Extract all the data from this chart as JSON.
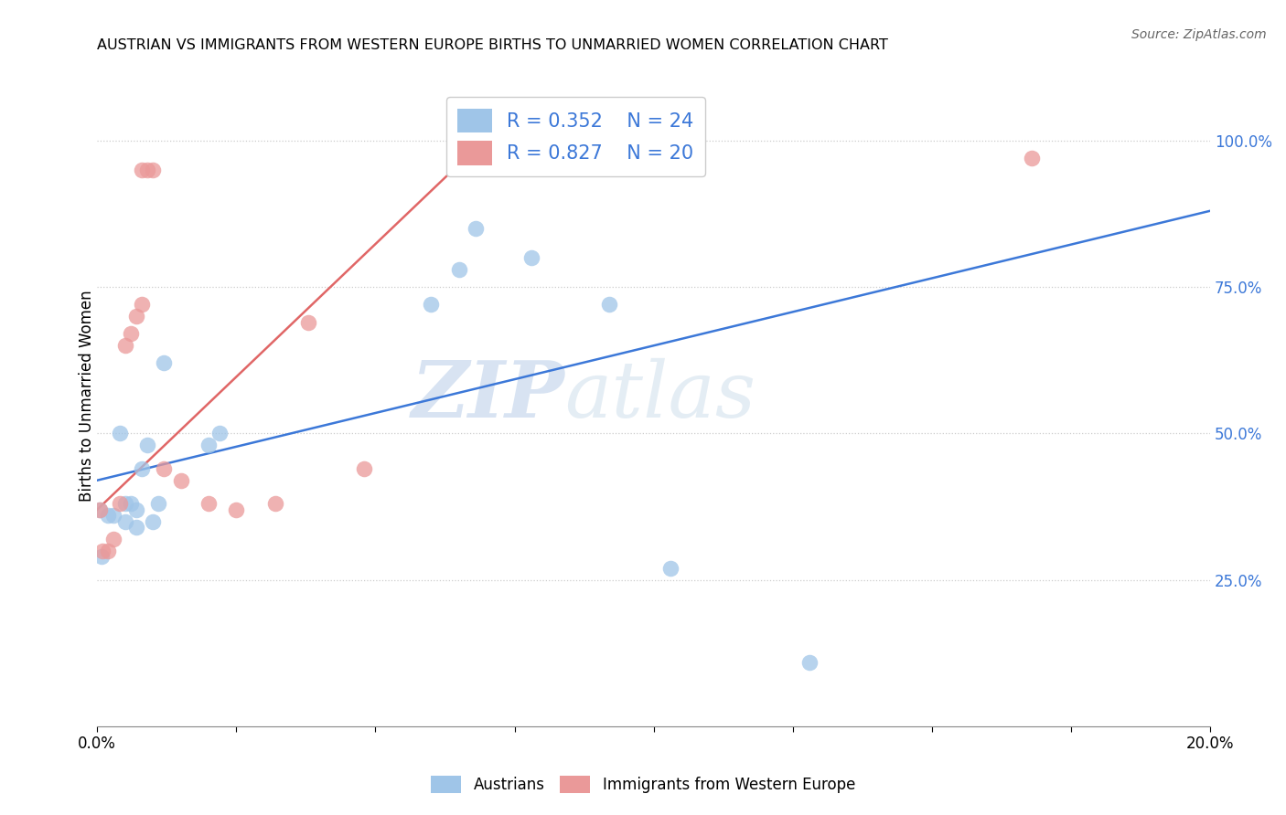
{
  "title": "AUSTRIAN VS IMMIGRANTS FROM WESTERN EUROPE BIRTHS TO UNMARRIED WOMEN CORRELATION CHART",
  "source": "Source: ZipAtlas.com",
  "ylabel": "Births to Unmarried Women",
  "xlim": [
    0.0,
    0.2
  ],
  "ylim": [
    0.0,
    1.13
  ],
  "ytick_values": [
    0.25,
    0.5,
    0.75,
    1.0
  ],
  "blue_color": "#9fc5e8",
  "pink_color": "#ea9999",
  "blue_line_color": "#3c78d8",
  "pink_line_color": "#e06666",
  "blue_r": "0.352",
  "blue_n": "24",
  "pink_r": "0.827",
  "pink_n": "20",
  "watermark_zip": "ZIP",
  "watermark_atlas": "atlas",
  "austrians_x": [
    0.0005,
    0.0008,
    0.002,
    0.003,
    0.004,
    0.005,
    0.005,
    0.006,
    0.007,
    0.007,
    0.008,
    0.009,
    0.01,
    0.011,
    0.012,
    0.02,
    0.022,
    0.06,
    0.065,
    0.068,
    0.078,
    0.092,
    0.103,
    0.128
  ],
  "austrians_y": [
    0.37,
    0.29,
    0.36,
    0.36,
    0.5,
    0.35,
    0.38,
    0.38,
    0.34,
    0.37,
    0.44,
    0.48,
    0.35,
    0.38,
    0.62,
    0.48,
    0.5,
    0.72,
    0.78,
    0.85,
    0.8,
    0.72,
    0.27,
    0.11
  ],
  "immigrants_x": [
    0.0005,
    0.001,
    0.002,
    0.003,
    0.004,
    0.005,
    0.006,
    0.007,
    0.008,
    0.008,
    0.009,
    0.01,
    0.012,
    0.015,
    0.02,
    0.025,
    0.032,
    0.038,
    0.048,
    0.168
  ],
  "immigrants_y": [
    0.37,
    0.3,
    0.3,
    0.32,
    0.38,
    0.65,
    0.67,
    0.7,
    0.72,
    0.95,
    0.95,
    0.95,
    0.44,
    0.42,
    0.38,
    0.37,
    0.38,
    0.69,
    0.44,
    0.97
  ],
  "blue_line_x0": 0.0,
  "blue_line_y0": 0.42,
  "blue_line_x1": 0.2,
  "blue_line_y1": 0.88,
  "pink_line_x0": 0.0,
  "pink_line_y0": 0.37,
  "pink_line_x1": 0.075,
  "pink_line_y1": 1.05
}
